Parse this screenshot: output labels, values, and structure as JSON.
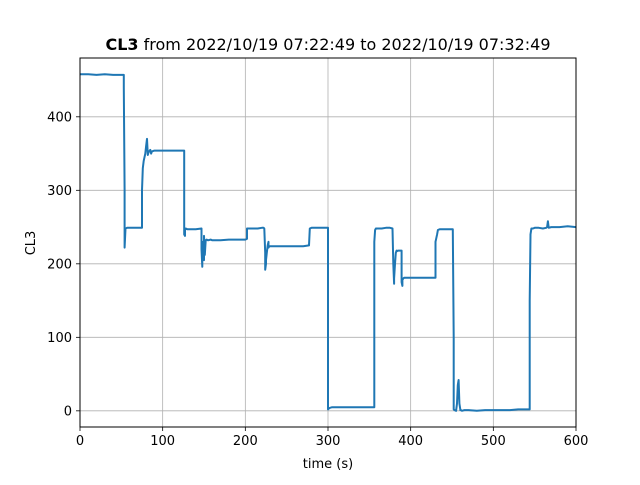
{
  "title": {
    "bold": "CL3",
    "rest": " from 2022/10/19 07:22:49 to 2022/10/19 07:32:49"
  },
  "colors": {
    "series": "#1f77b4",
    "grid": "#b0b0b0",
    "axes": "#000000"
  },
  "chart_data": {
    "type": "line",
    "title": "CL3 from 2022/10/19 07:22:49 to 2022/10/19 07:32:49",
    "xlabel": "time (s)",
    "ylabel": "CL3",
    "xlim": [
      0,
      600
    ],
    "ylim": [
      -22,
      480
    ],
    "grid": true,
    "xticks": [
      0,
      100,
      200,
      300,
      400,
      500,
      600
    ],
    "yticks": [
      0,
      100,
      200,
      300,
      400
    ],
    "series": [
      {
        "x": [
          0,
          10,
          20,
          30,
          40,
          53,
          53,
          54,
          54,
          55,
          57,
          60,
          70,
          75,
          75,
          76,
          77,
          78,
          79,
          80,
          81,
          82,
          83,
          85,
          86,
          87,
          90,
          100,
          110,
          120,
          126,
          126,
          127,
          127,
          128,
          130,
          140,
          147,
          147,
          148,
          148,
          149,
          150,
          150,
          151,
          152,
          153,
          155,
          158,
          160,
          170,
          180,
          190,
          200,
          202,
          202,
          205,
          210,
          215,
          220,
          222,
          223,
          224,
          224,
          225,
          225,
          226,
          227,
          228,
          228,
          229,
          230,
          232,
          235,
          240,
          250,
          260,
          270,
          277,
          278,
          280,
          290,
          300,
          300,
          300,
          301,
          302,
          305,
          310,
          320,
          330,
          340,
          350,
          355,
          356,
          356,
          357,
          358,
          360,
          365,
          370,
          375,
          378,
          379,
          380,
          380,
          381,
          382,
          383,
          383,
          385,
          389,
          389,
          390,
          390,
          391,
          392,
          395,
          400,
          410,
          420,
          430,
          430,
          432,
          433,
          435,
          440,
          445,
          450,
          451,
          452,
          452,
          453,
          455,
          456,
          457,
          458,
          459,
          460,
          460,
          461,
          462,
          465,
          470,
          480,
          490,
          500,
          510,
          520,
          530,
          544,
          544,
          545,
          546,
          548,
          550,
          555,
          560,
          564,
          565,
          566,
          567,
          570,
          580,
          590,
          600
        ],
        "y": [
          458,
          458,
          457,
          458,
          457,
          457,
          440,
          300,
          222,
          248,
          249,
          249,
          249,
          249,
          300,
          330,
          340,
          345,
          350,
          360,
          370,
          348,
          352,
          355,
          350,
          353,
          354,
          354,
          354,
          354,
          354,
          240,
          238,
          246,
          248,
          247,
          247,
          248,
          220,
          196,
          230,
          210,
          205,
          238,
          212,
          232,
          233,
          232,
          233,
          232,
          232,
          233,
          233,
          233,
          234,
          248,
          248,
          248,
          248,
          249,
          249,
          248,
          215,
          192,
          200,
          205,
          215,
          225,
          230,
          222,
          224,
          224,
          224,
          224,
          224,
          224,
          224,
          224,
          225,
          248,
          249,
          249,
          249,
          100,
          2,
          3,
          4,
          5,
          5,
          5,
          5,
          5,
          5,
          5,
          5,
          230,
          246,
          248,
          248,
          248,
          249,
          249,
          248,
          200,
          173,
          180,
          200,
          215,
          218,
          217,
          218,
          218,
          175,
          170,
          178,
          180,
          181,
          181,
          181,
          181,
          181,
          181,
          230,
          240,
          246,
          247,
          247,
          247,
          247,
          247,
          100,
          2,
          1,
          0,
          10,
          35,
          42,
          10,
          2,
          1,
          1,
          0,
          1,
          1,
          0,
          1,
          1,
          1,
          1,
          2,
          2,
          150,
          240,
          248,
          248,
          249,
          249,
          248,
          249,
          250,
          258,
          249,
          250,
          250,
          251,
          250
        ]
      }
    ]
  }
}
